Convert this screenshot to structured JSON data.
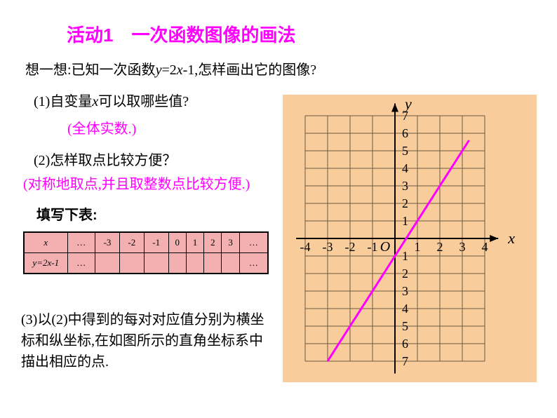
{
  "title": "活动1 一次函数图像的画法",
  "prompt_pre": "想一想:已知一次函数",
  "prompt_func_y": "y",
  "prompt_func_eq": "=2",
  "prompt_func_x": "x",
  "prompt_func_tail": "-1,怎样画出它的图像?",
  "q1_label": "(1)自变量",
  "q1_var": "x",
  "q1_tail": "可以取哪些值?",
  "ans1": "(全体实数.)",
  "q2": "(2)怎样取点比较方便？",
  "ans2": "(对称地取点,并且取整数点比较方便.)",
  "fill": "填写下表:",
  "table": {
    "row1_head": "x",
    "row2_head": "y=2x-1",
    "cols": [
      "…",
      "-3",
      "-2",
      "-1",
      "0",
      "1",
      "2",
      "3",
      "…"
    ],
    "row2": [
      "…",
      "",
      "",
      "",
      "",
      "",
      "",
      "",
      "…"
    ]
  },
  "q3": "(3)以(2)中得到的每对对应值分别为横坐标和纵坐标,在如图所示的直角坐标系中描出相应的点.",
  "graph": {
    "bg_color": "#f9cc9b",
    "grid_color": "#6b5a3f",
    "axis_color": "#000000",
    "line_color": "#ff00ff",
    "text_color": "#000000",
    "x_label": "x",
    "y_label": "y",
    "origin_label": "O",
    "x_ticks": [
      -4,
      -3,
      -2,
      -1,
      1,
      2,
      3,
      4
    ],
    "y_ticks_pos": [
      1,
      2,
      3,
      4,
      5,
      6,
      7
    ],
    "y_ticks_neg": [
      1,
      2,
      3,
      4,
      5,
      6,
      7
    ],
    "xlim": [
      -4.5,
      4.5
    ],
    "ylim": [
      -7.5,
      7.5
    ],
    "grid_x_lines": [
      -4,
      -3,
      -2,
      -1,
      0,
      1,
      2,
      3,
      4
    ],
    "grid_y_lines": [
      -7,
      -6,
      -5,
      -4,
      -3,
      -2,
      -1,
      0,
      1,
      2,
      3,
      4,
      5,
      6,
      7
    ],
    "func_line": {
      "x1": -3,
      "y1": -7,
      "x2": 3.3,
      "y2": 5.6
    },
    "line_width": 3,
    "tick_fontsize": 18,
    "label_fontsize": 22
  }
}
